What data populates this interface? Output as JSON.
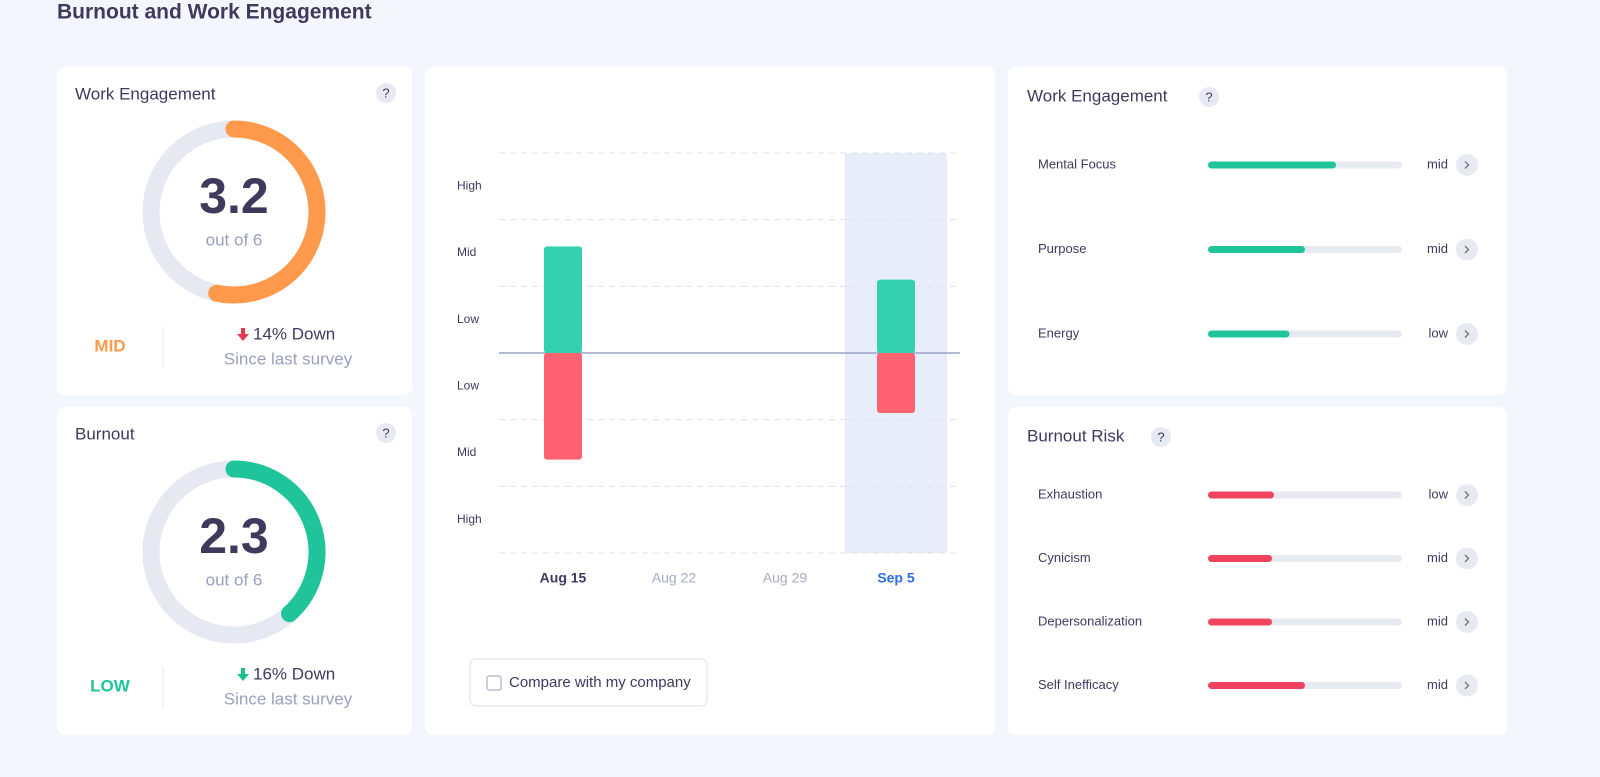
{
  "title": "Burnout and Work Engagement",
  "help_icon": "?",
  "gauges": [
    {
      "title": "Work Engagement",
      "value": 3.2,
      "max": 6,
      "max_label": "out of 6",
      "level": "MID",
      "color": "#ff9a4d",
      "change": "14% Down",
      "change_color": "#e8394f",
      "since": "Since last survey"
    },
    {
      "title": "Burnout",
      "value": 2.3,
      "max": 6,
      "max_label": "out of 6",
      "level": "LOW",
      "color": "#1fc49b",
      "change": "16% Down",
      "change_color": "#1bbf8e",
      "since": "Since last survey"
    }
  ],
  "chart": {
    "categories": [
      "Aug 15",
      "Aug 22",
      "Aug 29",
      "Sep 5"
    ],
    "highlight_index": 3,
    "ylim": [
      -3,
      3
    ],
    "gridlines": [
      -3,
      -2,
      -1,
      0,
      1,
      2,
      3
    ],
    "yticks": [
      {
        "value": 2.5,
        "label": "High"
      },
      {
        "value": 1.5,
        "label": "Mid"
      },
      {
        "value": 0.5,
        "label": "Low"
      },
      {
        "value": -0.5,
        "label": "Low"
      },
      {
        "value": -1.5,
        "label": "Mid"
      },
      {
        "value": -2.5,
        "label": "High"
      }
    ],
    "series": [
      {
        "color": "#33d1ad",
        "values": [
          1.6,
          null,
          null,
          1.1
        ]
      },
      {
        "color": "#ff6373",
        "values": [
          -1.6,
          null,
          null,
          -0.9
        ]
      }
    ],
    "compare_label": "Compare with my company"
  },
  "panels": [
    {
      "title": "Work Engagement",
      "color": "#1fc49b",
      "max": 100,
      "rows": [
        {
          "label": "Mental Focus",
          "value": 66,
          "level": "mid"
        },
        {
          "label": "Purpose",
          "value": 50,
          "level": "mid"
        },
        {
          "label": "Energy",
          "value": 42,
          "level": "low"
        }
      ]
    },
    {
      "title": "Burnout Risk",
      "color": "#f0445e",
      "max": 100,
      "rows": [
        {
          "label": "Exhaustion",
          "value": 34,
          "level": "low"
        },
        {
          "label": "Cynicism",
          "value": 33,
          "level": "mid"
        },
        {
          "label": "Depersonalization",
          "value": 33,
          "level": "mid"
        },
        {
          "label": "Self Inefficacy",
          "value": 50,
          "level": "mid"
        }
      ]
    }
  ]
}
